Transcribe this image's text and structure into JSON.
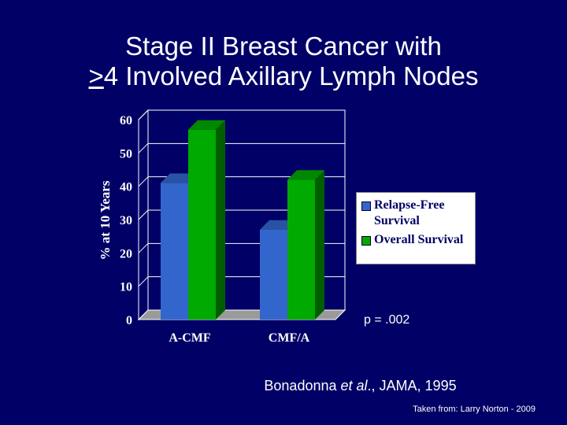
{
  "slide": {
    "title_line1": "Stage II Breast Cancer with",
    "title_line2_prefix": ">",
    "title_line2_rest": "4 Involved Axillary Lymph Nodes",
    "p_value": "p = .002",
    "citation_author": "Bonadonna ",
    "citation_etal": "et al",
    "citation_rest": "., JAMA, 1995",
    "credit": "Taken from: Larry Norton - 2009"
  },
  "colors": {
    "background": "#000066",
    "relapse_free": "#3366cc",
    "overall": "#00aa00"
  },
  "chart_data": {
    "type": "bar",
    "categories": [
      "A-CMF",
      "CMF/A"
    ],
    "series": [
      {
        "name": "Relapse-Free Survival",
        "name_lines": [
          "Relapse-Free",
          "Survival"
        ],
        "values": [
          41,
          27
        ]
      },
      {
        "name": "Overall Survival",
        "name_lines": [
          "Overall Survival"
        ],
        "values": [
          57,
          42
        ]
      }
    ],
    "ylabel": "% at 10 Years",
    "ylim": [
      0,
      60
    ],
    "yticks": [
      "0",
      "10",
      "20",
      "30",
      "40",
      "50",
      "60"
    ],
    "grid": true,
    "legend_position": "right"
  }
}
